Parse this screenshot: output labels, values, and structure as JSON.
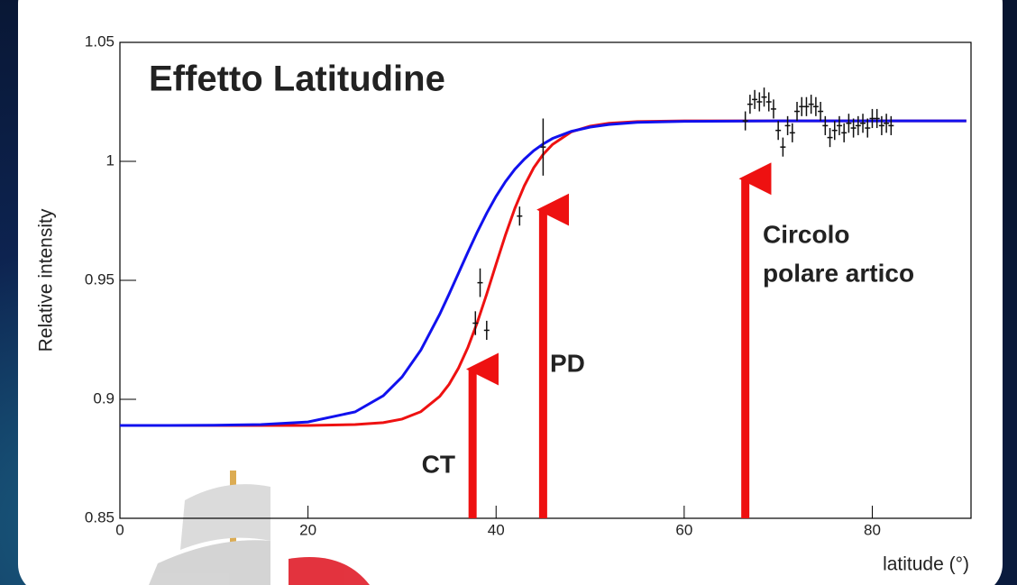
{
  "chart_data": {
    "type": "errorbar",
    "title": "Effetto Latitudine",
    "xlabel": "latitude (°)",
    "ylabel": "Relative intensity",
    "xlim": [
      0,
      90.5
    ],
    "ylim": [
      0.85,
      1.05
    ],
    "xticks": [
      0,
      20,
      40,
      60,
      80
    ],
    "yticks": [
      0.85,
      0.9,
      0.95,
      1,
      1.05
    ],
    "curves": [
      {
        "color": "#ee1111",
        "x": [
          0,
          5,
          10,
          15,
          20,
          25,
          28,
          30,
          32,
          34,
          35,
          36,
          37,
          38,
          39,
          40,
          41,
          42,
          43,
          44,
          45,
          46,
          48,
          50,
          52,
          55,
          60,
          70,
          80,
          90
        ],
        "values": [
          0.889,
          0.889,
          0.889,
          0.889,
          0.889,
          0.8894,
          0.8902,
          0.8917,
          0.8948,
          0.9012,
          0.9063,
          0.9131,
          0.9218,
          0.9323,
          0.9442,
          0.9568,
          0.9691,
          0.9803,
          0.9897,
          0.9973,
          1.0029,
          1.0071,
          1.0124,
          1.0148,
          1.016,
          1.0167,
          1.017,
          1.017,
          1.017,
          1.017
        ]
      },
      {
        "color": "#1111ee",
        "x": [
          0,
          5,
          10,
          15,
          20,
          25,
          28,
          30,
          32,
          34,
          35,
          36,
          37,
          38,
          39,
          40,
          41,
          42,
          43,
          44,
          45,
          46,
          48,
          50,
          52,
          55,
          60,
          70,
          80,
          90
        ],
        "values": [
          0.889,
          0.889,
          0.8891,
          0.8894,
          0.8905,
          0.8947,
          0.9015,
          0.9094,
          0.9207,
          0.9357,
          0.9442,
          0.953,
          0.9618,
          0.9703,
          0.9782,
          0.9853,
          0.9915,
          0.9967,
          1.0009,
          1.0045,
          1.0073,
          1.0096,
          1.0126,
          1.0144,
          1.0155,
          1.0164,
          1.0168,
          1.017,
          1.017,
          1.017
        ]
      }
    ],
    "points": {
      "color": "#111111",
      "x": [
        37.8,
        38.3,
        39.0,
        42.5,
        45.0,
        66.5,
        67,
        67.5,
        68,
        68.5,
        69,
        69.5,
        70,
        70.5,
        71,
        71.5,
        72,
        72.5,
        73,
        73.5,
        74,
        74.5,
        75,
        75.5,
        76,
        76.5,
        77,
        77.5,
        78,
        78.5,
        79,
        79.5,
        80,
        80.5,
        81,
        81.5,
        82
      ],
      "values": [
        0.932,
        0.949,
        0.929,
        0.977,
        1.006,
        1.017,
        1.024,
        1.026,
        1.025,
        1.027,
        1.025,
        1.022,
        1.013,
        1.006,
        1.015,
        1.012,
        1.021,
        1.023,
        1.023,
        1.024,
        1.023,
        1.021,
        1.015,
        1.01,
        1.013,
        1.015,
        1.012,
        1.016,
        1.014,
        1.015,
        1.016,
        1.014,
        1.018,
        1.018,
        1.015,
        1.016,
        1.015
      ],
      "errors": [
        0.005,
        0.006,
        0.004,
        0.004,
        0.012,
        0.004,
        0.004,
        0.004,
        0.004,
        0.004,
        0.004,
        0.004,
        0.004,
        0.004,
        0.004,
        0.004,
        0.004,
        0.004,
        0.004,
        0.004,
        0.004,
        0.004,
        0.004,
        0.004,
        0.004,
        0.004,
        0.004,
        0.004,
        0.004,
        0.004,
        0.004,
        0.004,
        0.004,
        0.004,
        0.004,
        0.004,
        0.004
      ]
    },
    "annotations": [
      {
        "lines": [
          "CT"
        ],
        "x": 37.5,
        "y": 0.918
      },
      {
        "lines": [
          "PD"
        ],
        "x": 45,
        "y": 0.985
      },
      {
        "lines": [
          "Circolo",
          "polare artico"
        ],
        "x": 66.5,
        "y": 0.998
      }
    ]
  }
}
